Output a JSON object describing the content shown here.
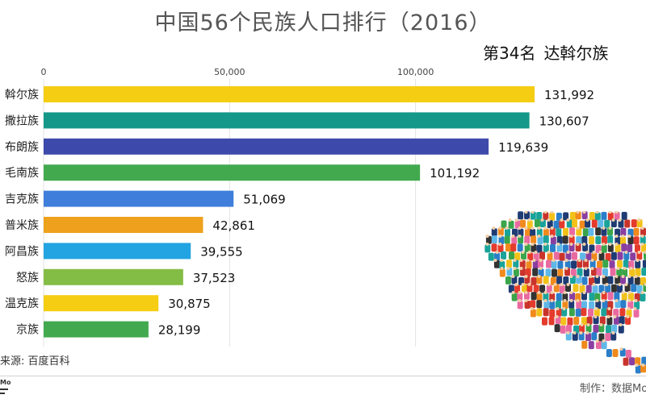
{
  "title": "中国56个民族人口排行（2016）",
  "current": {
    "rank": "第34名",
    "name": "达斡尔族"
  },
  "source": "来源: 百度百科",
  "credit": "制作：数据Mo",
  "chart_data": {
    "type": "bar",
    "orientation": "horizontal",
    "x_ticks": [
      "0",
      "50,000",
      "100,000"
    ],
    "xlim": [
      0,
      135000
    ],
    "grid": true,
    "categories": [
      "达斡尔族",
      "撒拉族",
      "布朗族",
      "毛南族",
      "塔吉克族",
      "普米族",
      "阿昌族",
      "怒族",
      "鄂温克族",
      "京族"
    ],
    "visible_labels": [
      "斡尔族",
      "撒拉族",
      "布朗族",
      "毛南族",
      "吉克族",
      "普米族",
      "阿昌族",
      "怒族",
      "温克族",
      "京族"
    ],
    "values": [
      131992,
      130607,
      119639,
      101192,
      51069,
      42861,
      39555,
      37523,
      30875,
      28199
    ],
    "value_labels": [
      "131,992",
      "130,607",
      "119,639",
      "101,192",
      "51,069",
      "42,861",
      "39,555",
      "37,523",
      "30,875",
      "28,199"
    ],
    "colors": [
      "#f5cd12",
      "#159889",
      "#3e4aab",
      "#42a94f",
      "#3f7fdb",
      "#eea11c",
      "#22a4e2",
      "#84bd45",
      "#f5cd12",
      "#42a94f"
    ]
  },
  "mosaic_colors": [
    "#e43b2c",
    "#2b7ec9",
    "#f2c21a",
    "#3aa54a",
    "#8a3fa0",
    "#1f3b73",
    "#f08a1d",
    "#1aa39a",
    "#c8342c",
    "#5fb8e8",
    "#333333",
    "#e96aa0"
  ]
}
